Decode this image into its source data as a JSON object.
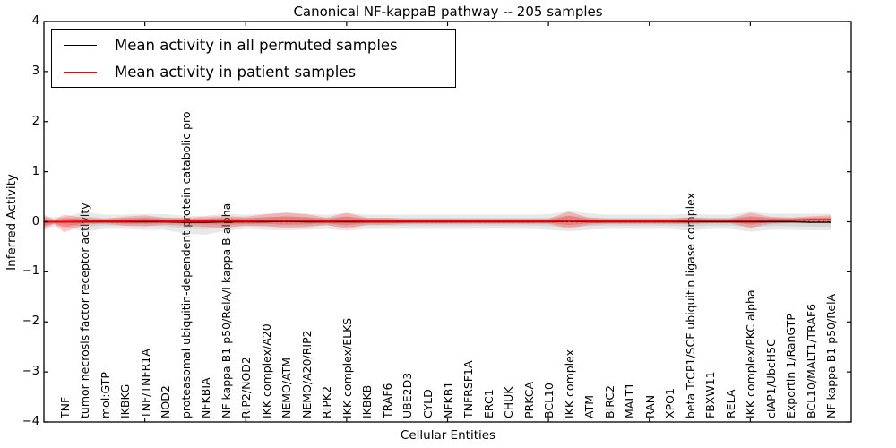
{
  "figure": {
    "title": "Canonical NF-kappaB pathway -- 205 samples",
    "xlabel": "Cellular Entities",
    "ylabel": "Inferred Activity"
  },
  "legend": {
    "items": [
      {
        "label": "Mean activity in all permuted samples",
        "color": "#000000"
      },
      {
        "label": "Mean activity in patient samples",
        "color": "#ff0000"
      }
    ],
    "position": "upper left"
  },
  "chart_data": {
    "type": "line",
    "title": "Canonical NF-kappaB pathway -- 205 samples",
    "xlabel": "Cellular Entities",
    "ylabel": "Inferred Activity",
    "ylim": [
      -4,
      4
    ],
    "xlim": [
      0,
      40
    ],
    "grid": false,
    "legend_position": "upper left",
    "ytick_labels": [
      "4",
      "3",
      "2",
      "1",
      "0",
      "−1",
      "−2",
      "−3",
      "−4"
    ],
    "ytick_values": [
      4,
      3,
      2,
      1,
      0,
      -1,
      -2,
      -3,
      -4
    ],
    "xticks_major": [
      5,
      10,
      15,
      20,
      25,
      30,
      35
    ],
    "zero_line": 0,
    "categories": [
      "TNF",
      "tumor necrosis factor receptor activity",
      "mol:GTP",
      "IKBKG",
      "TNF/TNFR1A",
      "NOD2",
      "proteasomal ubiquitin-dependent protein catabolic pro",
      "NFKBIA",
      "NF kappa B1 p50/RelA/I kappa B alpha",
      "RIP2/NOD2",
      "IKK complex/A20",
      "NEMO/ATM",
      "NEMO/A20/RIP2",
      "RIPK2",
      "IKK complex/ELKS",
      "IKBKB",
      "TRAF6",
      "UBE2D3",
      "CYLD",
      "NFKB1",
      "TNFRSF1A",
      "ERC1",
      "CHUK",
      "PRKCA",
      "BCL10",
      "IKK complex",
      "ATM",
      "BIRC2",
      "MALT1",
      "RAN",
      "XPO1",
      "beta TrCP1/SCF ubiquitin ligase complex",
      "FBXW11",
      "RELA",
      "IKK complex/PKC alpha",
      "cIAP1/UbcH5C",
      "Exportin 1/RanGTP",
      "BCL10/MALT1/TRAF6",
      "NF kappa B1 p50/RelA"
    ],
    "series": [
      {
        "name": "Mean activity in all permuted samples",
        "color": "#000000",
        "values": [
          0,
          0,
          0,
          0,
          0,
          0,
          -0.01,
          -0.01,
          0,
          0,
          0,
          0.01,
          0,
          0,
          0,
          0,
          0,
          0,
          0,
          0,
          0,
          0,
          0,
          0,
          0,
          0.01,
          0,
          0,
          0,
          0,
          0,
          0,
          0,
          0,
          0,
          0,
          0,
          -0.01,
          -0.01
        ]
      },
      {
        "name": "Mean activity in patient samples",
        "color": "#ff0000",
        "values": [
          0,
          0.01,
          0.01,
          0.01,
          0.02,
          0.01,
          0.01,
          0.01,
          0.02,
          0.01,
          0.02,
          0.02,
          0.02,
          0.01,
          0.02,
          0.01,
          0.01,
          0.01,
          0.01,
          0.01,
          0.01,
          0.01,
          0.01,
          0.01,
          0.01,
          0.02,
          0.01,
          0.01,
          0.01,
          0.01,
          0.01,
          0.02,
          0.02,
          0.02,
          0.02,
          0.03,
          0.03,
          0.04,
          0.04
        ]
      }
    ],
    "bands": {
      "inner_ratio": 0.55,
      "permuted": {
        "color": "rgba(125,125,125,0.18)",
        "edge": [
          {
            "d": 0,
            "up": 0.1,
            "low": 0.1
          }
        ],
        "upper": [
          0.09,
          0.2,
          0.14,
          0.14,
          0.16,
          0.15,
          0.13,
          0.13,
          0.16,
          0.14,
          0.16,
          0.18,
          0.16,
          0.14,
          0.18,
          0.14,
          0.14,
          0.14,
          0.14,
          0.14,
          0.14,
          0.14,
          0.14,
          0.14,
          0.15,
          0.2,
          0.17,
          0.14,
          0.14,
          0.14,
          0.14,
          0.16,
          0.14,
          0.14,
          0.2,
          0.16,
          0.16,
          0.17,
          0.17
        ],
        "lower": [
          0.09,
          0.2,
          0.14,
          0.14,
          0.16,
          0.16,
          0.23,
          0.25,
          0.18,
          0.14,
          0.16,
          0.18,
          0.16,
          0.14,
          0.18,
          0.14,
          0.14,
          0.14,
          0.14,
          0.14,
          0.14,
          0.14,
          0.14,
          0.14,
          0.16,
          0.2,
          0.16,
          0.14,
          0.14,
          0.14,
          0.14,
          0.18,
          0.14,
          0.14,
          0.2,
          0.16,
          0.16,
          0.16,
          0.16
        ]
      },
      "patient": {
        "color": "rgba(255,0,0,0.22)",
        "edge": [
          {
            "d": 0,
            "up": 0.14,
            "low": 0.18
          },
          {
            "d": 0.5,
            "up": 0.04,
            "low": 0.04
          }
        ],
        "upper": [
          0.14,
          0.07,
          0.05,
          0.09,
          0.11,
          0.07,
          0.07,
          0.09,
          0.09,
          0.09,
          0.13,
          0.16,
          0.13,
          0.07,
          0.16,
          0.07,
          0.07,
          0.05,
          0.05,
          0.05,
          0.05,
          0.05,
          0.05,
          0.05,
          0.05,
          0.18,
          0.07,
          0.05,
          0.05,
          0.05,
          0.05,
          0.07,
          0.05,
          0.05,
          0.16,
          0.07,
          0.05,
          0.07,
          0.09
        ],
        "lower": [
          0.21,
          0.07,
          0.05,
          0.09,
          0.11,
          0.07,
          0.09,
          0.11,
          0.14,
          0.09,
          0.11,
          0.14,
          0.13,
          0.07,
          0.16,
          0.07,
          0.07,
          0.05,
          0.05,
          0.05,
          0.05,
          0.05,
          0.05,
          0.05,
          0.05,
          0.16,
          0.07,
          0.05,
          0.05,
          0.05,
          0.05,
          0.07,
          0.05,
          0.05,
          0.14,
          0.07,
          0.05,
          0.05,
          0.05
        ]
      }
    }
  }
}
